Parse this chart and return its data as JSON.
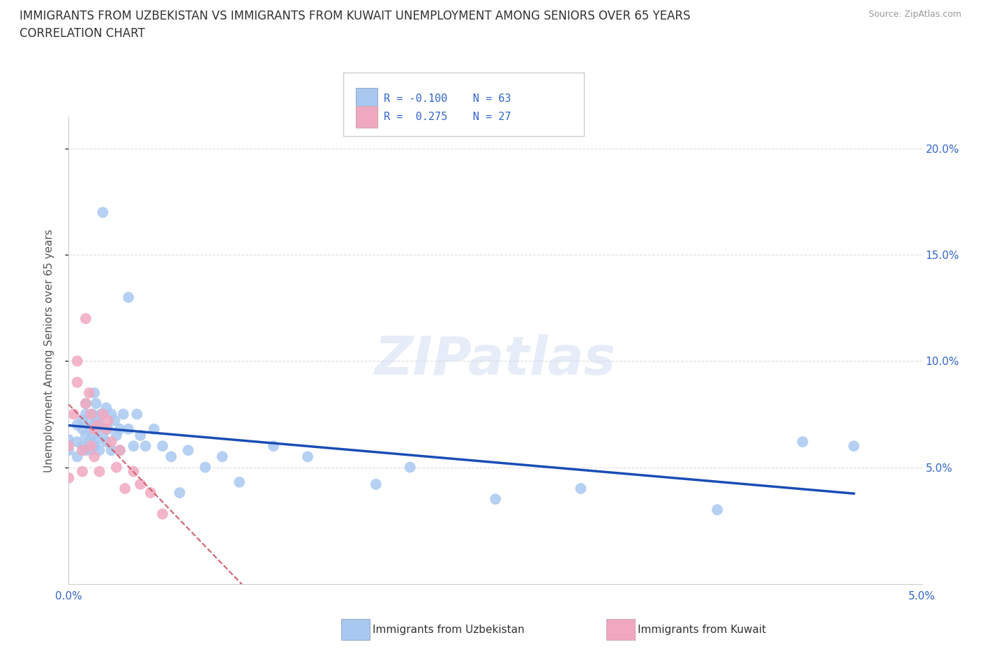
{
  "title_line1": "IMMIGRANTS FROM UZBEKISTAN VS IMMIGRANTS FROM KUWAIT UNEMPLOYMENT AMONG SENIORS OVER 65 YEARS",
  "title_line2": "CORRELATION CHART",
  "source_text": "Source: ZipAtlas.com",
  "watermark": "ZIPatlas",
  "ylabel": "Unemployment Among Seniors over 65 years",
  "xlim": [
    0.0,
    0.05
  ],
  "ylim": [
    -0.005,
    0.215
  ],
  "yticks": [
    0.05,
    0.1,
    0.15,
    0.2
  ],
  "ytick_labels": [
    "5.0%",
    "10.0%",
    "15.0%",
    "20.0%"
  ],
  "xticks": [
    0.0,
    0.01,
    0.02,
    0.03,
    0.04,
    0.05
  ],
  "xtick_labels": [
    "0.0%",
    "",
    "",
    "",
    "",
    "5.0%"
  ],
  "r_uzbekistan": -0.1,
  "n_uzbekistan": 63,
  "r_kuwait": 0.275,
  "n_kuwait": 27,
  "uzbekistan_color": "#a8c8f0",
  "kuwait_color": "#f0a8c0",
  "uzbekistan_line_color": "#1a4db5",
  "kuwait_line_color": "#d06070",
  "background_color": "#ffffff",
  "uzbekistan_x": [
    0.0,
    0.0,
    0.0005,
    0.0005,
    0.0005,
    0.0008,
    0.0008,
    0.0008,
    0.001,
    0.001,
    0.001,
    0.001,
    0.0012,
    0.0012,
    0.0013,
    0.0013,
    0.0014,
    0.0014,
    0.0015,
    0.0015,
    0.0015,
    0.0016,
    0.0016,
    0.0017,
    0.0017,
    0.0018,
    0.0018,
    0.0019,
    0.002,
    0.002,
    0.0022,
    0.0022,
    0.0023,
    0.0025,
    0.0025,
    0.0027,
    0.0028,
    0.003,
    0.003,
    0.0032,
    0.0035,
    0.0035,
    0.0038,
    0.004,
    0.0042,
    0.0045,
    0.005,
    0.0055,
    0.006,
    0.0065,
    0.007,
    0.008,
    0.009,
    0.01,
    0.012,
    0.014,
    0.018,
    0.02,
    0.025,
    0.03,
    0.038,
    0.043,
    0.046
  ],
  "uzbekistan_y": [
    0.063,
    0.058,
    0.07,
    0.055,
    0.062,
    0.06,
    0.072,
    0.068,
    0.075,
    0.065,
    0.058,
    0.08,
    0.062,
    0.072,
    0.068,
    0.058,
    0.075,
    0.065,
    0.085,
    0.07,
    0.06,
    0.068,
    0.08,
    0.072,
    0.063,
    0.07,
    0.058,
    0.075,
    0.17,
    0.065,
    0.078,
    0.062,
    0.068,
    0.075,
    0.058,
    0.072,
    0.065,
    0.068,
    0.058,
    0.075,
    0.13,
    0.068,
    0.06,
    0.075,
    0.065,
    0.06,
    0.068,
    0.06,
    0.055,
    0.038,
    0.058,
    0.05,
    0.055,
    0.043,
    0.06,
    0.055,
    0.042,
    0.05,
    0.035,
    0.04,
    0.03,
    0.062,
    0.06
  ],
  "kuwait_x": [
    0.0,
    0.0,
    0.0003,
    0.0005,
    0.0005,
    0.0008,
    0.0008,
    0.001,
    0.001,
    0.0012,
    0.0013,
    0.0013,
    0.0015,
    0.0015,
    0.0017,
    0.0018,
    0.002,
    0.0022,
    0.0023,
    0.0025,
    0.0028,
    0.003,
    0.0033,
    0.0038,
    0.0042,
    0.0048,
    0.0055
  ],
  "kuwait_y": [
    0.045,
    0.06,
    0.075,
    0.09,
    0.1,
    0.048,
    0.058,
    0.12,
    0.08,
    0.085,
    0.075,
    0.06,
    0.068,
    0.055,
    0.07,
    0.048,
    0.075,
    0.068,
    0.072,
    0.062,
    0.05,
    0.058,
    0.04,
    0.048,
    0.042,
    0.038,
    0.028
  ]
}
